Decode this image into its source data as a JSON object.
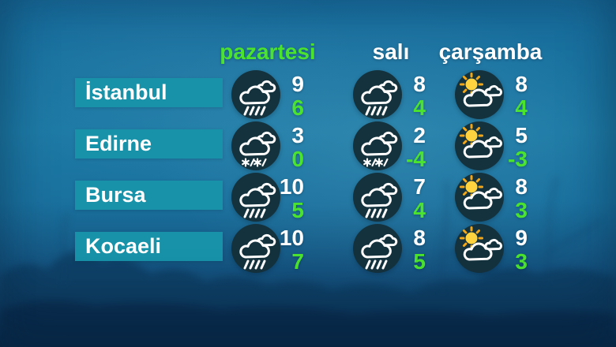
{
  "header": {
    "days": [
      {
        "label": "pazartesi",
        "highlighted": true
      },
      {
        "label": "salı",
        "highlighted": false
      },
      {
        "label": "çarşamba",
        "highlighted": false
      }
    ]
  },
  "forecast": {
    "rows": [
      {
        "city": "İstanbul",
        "cells": [
          {
            "icon": "rain",
            "hi": "9",
            "lo": "6"
          },
          {
            "icon": "rain",
            "hi": "8",
            "lo": "4"
          },
          {
            "icon": "sun-cloud",
            "hi": "8",
            "lo": "4"
          }
        ]
      },
      {
        "city": "Edirne",
        "cells": [
          {
            "icon": "sleet",
            "hi": "3",
            "lo": "0"
          },
          {
            "icon": "sleet",
            "hi": "2",
            "lo": "-4"
          },
          {
            "icon": "sun-cloud",
            "hi": "5",
            "lo": "-3"
          }
        ]
      },
      {
        "city": "Bursa",
        "cells": [
          {
            "icon": "rain",
            "hi": "10",
            "lo": "5"
          },
          {
            "icon": "rain",
            "hi": "7",
            "lo": "4"
          },
          {
            "icon": "sun-cloud",
            "hi": "8",
            "lo": "3"
          }
        ]
      },
      {
        "city": "Kocaeli",
        "cells": [
          {
            "icon": "rain",
            "hi": "10",
            "lo": "7"
          },
          {
            "icon": "rain",
            "hi": "8",
            "lo": "5"
          },
          {
            "icon": "sun-cloud",
            "hi": "9",
            "lo": "3"
          }
        ]
      }
    ]
  },
  "icons": {
    "rain": "cloud-with-rain-icon",
    "sleet": "cloud-with-snow-and-rain-icon",
    "sun-cloud": "sun-behind-clouds-icon"
  },
  "colors": {
    "accent_green": "#4ce32f",
    "city_band_teal": "#1792a8",
    "icon_circle_dark": "#14323d",
    "sun_yellow": "#ffd23f",
    "sun_ray_orange": "#f2a71b",
    "temp_high_white": "#ffffff",
    "background_blue": "#1a6f9e"
  }
}
